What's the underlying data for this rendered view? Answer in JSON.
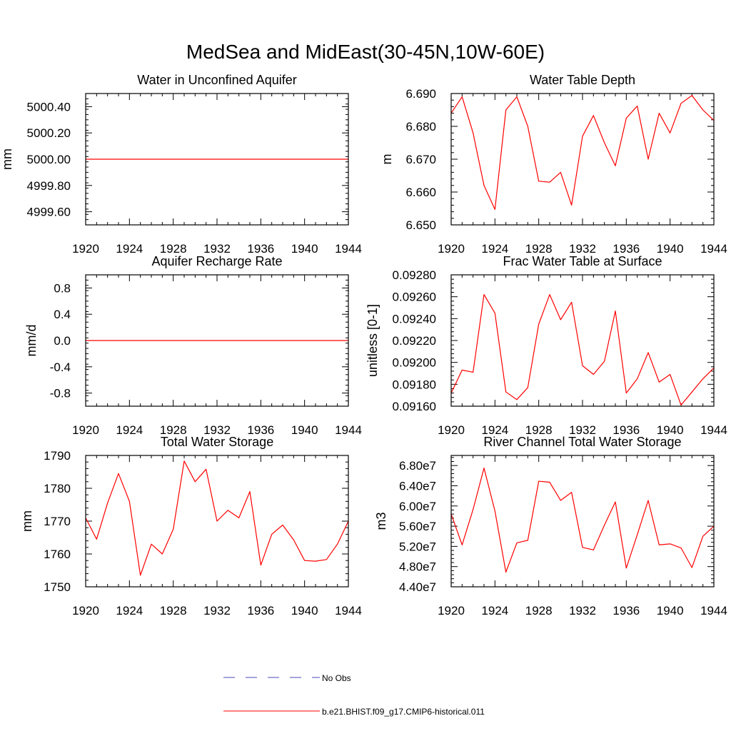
{
  "figure": {
    "title": "MedSea and MidEast(30-45N,10W-60E)"
  },
  "legend": [
    {
      "label": "No Obs",
      "color": "#4a4ab8",
      "dash": "dashed"
    },
    {
      "label": "b.e21.BHIST.f09_g17.CMIP6-historical.011",
      "color": "#ff0000",
      "dash": "solid"
    }
  ],
  "chart_data": [
    {
      "type": "line",
      "title": "Water in Unconfined Aquifer",
      "xlabel": "",
      "ylabel": "mm",
      "xlim": [
        1920,
        1944
      ],
      "ylim": [
        4999.5,
        5000.5
      ],
      "xticks": [
        1920,
        1924,
        1928,
        1932,
        1936,
        1940,
        1944
      ],
      "xtick_labels": [
        "1920",
        "1924",
        "1928",
        "1932",
        "1936",
        "1940",
        "1944"
      ],
      "yticks": [
        4999.6,
        4999.8,
        5000.0,
        5000.2,
        5000.4
      ],
      "ytick_labels": [
        "4999.60",
        "4999.80",
        "5000.00",
        "5000.20",
        "5000.40"
      ],
      "x": [
        1920,
        1921,
        1922,
        1923,
        1924,
        1925,
        1926,
        1927,
        1928,
        1929,
        1930,
        1931,
        1932,
        1933,
        1934,
        1935,
        1936,
        1937,
        1938,
        1939,
        1940,
        1941,
        1942,
        1943,
        1944
      ],
      "series": [
        {
          "color": "#ff0000",
          "values": [
            5000,
            5000,
            5000,
            5000,
            5000,
            5000,
            5000,
            5000,
            5000,
            5000,
            5000,
            5000,
            5000,
            5000,
            5000,
            5000,
            5000,
            5000,
            5000,
            5000,
            5000,
            5000,
            5000,
            5000,
            5000
          ]
        }
      ]
    },
    {
      "type": "line",
      "title": "Water Table Depth",
      "xlabel": "",
      "ylabel": "m",
      "xlim": [
        1920,
        1944
      ],
      "ylim": [
        6.65,
        6.69
      ],
      "xticks": [
        1920,
        1924,
        1928,
        1932,
        1936,
        1940,
        1944
      ],
      "xtick_labels": [
        "1920",
        "1924",
        "1928",
        "1932",
        "1936",
        "1940",
        "1944"
      ],
      "yticks": [
        6.65,
        6.66,
        6.67,
        6.68,
        6.69
      ],
      "ytick_labels": [
        "6.650",
        "6.660",
        "6.670",
        "6.680",
        "6.690"
      ],
      "x": [
        1920,
        1921,
        1922,
        1923,
        1924,
        1925,
        1926,
        1927,
        1928,
        1929,
        1930,
        1931,
        1932,
        1933,
        1934,
        1935,
        1936,
        1937,
        1938,
        1939,
        1940,
        1941,
        1942,
        1943,
        1944
      ],
      "series": [
        {
          "color": "#ff0000",
          "values": [
            6.684,
            6.689,
            6.678,
            6.662,
            6.6547,
            6.685,
            6.689,
            6.68,
            6.6633,
            6.663,
            6.666,
            6.656,
            6.677,
            6.6833,
            6.675,
            6.668,
            6.6825,
            6.6862,
            6.67,
            6.684,
            6.678,
            6.687,
            6.6894,
            6.685,
            6.6818
          ]
        }
      ]
    },
    {
      "type": "line",
      "title": "Aquifer Recharge Rate",
      "xlabel": "",
      "ylabel": "mm/d",
      "xlim": [
        1920,
        1944
      ],
      "ylim": [
        -1.0,
        1.0
      ],
      "xticks": [
        1920,
        1924,
        1928,
        1932,
        1936,
        1940,
        1944
      ],
      "xtick_labels": [
        "1920",
        "1924",
        "1928",
        "1932",
        "1936",
        "1940",
        "1944"
      ],
      "yticks": [
        -0.8,
        -0.4,
        0.0,
        0.4,
        0.8
      ],
      "ytick_labels": [
        "-0.8",
        "-0.4",
        "0.0",
        "0.4",
        "0.8"
      ],
      "x": [
        1920,
        1921,
        1922,
        1923,
        1924,
        1925,
        1926,
        1927,
        1928,
        1929,
        1930,
        1931,
        1932,
        1933,
        1934,
        1935,
        1936,
        1937,
        1938,
        1939,
        1940,
        1941,
        1942,
        1943,
        1944
      ],
      "series": [
        {
          "color": "#ff0000",
          "values": [
            0,
            0,
            0,
            0,
            0,
            0,
            0,
            0,
            0,
            0,
            0,
            0,
            0,
            0,
            0,
            0,
            0,
            0,
            0,
            0,
            0,
            0,
            0,
            0,
            0
          ]
        }
      ]
    },
    {
      "type": "line",
      "title": "Frac Water Table at Surface",
      "xlabel": "",
      "ylabel": "unitless [0-1]",
      "xlim": [
        1920,
        1944
      ],
      "ylim": [
        0.0916,
        0.0928
      ],
      "xticks": [
        1920,
        1924,
        1928,
        1932,
        1936,
        1940,
        1944
      ],
      "xtick_labels": [
        "1920",
        "1924",
        "1928",
        "1932",
        "1936",
        "1940",
        "1944"
      ],
      "yticks": [
        0.0916,
        0.0918,
        0.092,
        0.0922,
        0.0924,
        0.0926,
        0.0928
      ],
      "ytick_labels": [
        "0.09160",
        "0.09180",
        "0.09200",
        "0.09220",
        "0.09240",
        "0.09260",
        "0.09280"
      ],
      "x": [
        1920,
        1921,
        1922,
        1923,
        1924,
        1925,
        1926,
        1927,
        1928,
        1929,
        1930,
        1931,
        1932,
        1933,
        1934,
        1935,
        1936,
        1937,
        1938,
        1939,
        1940,
        1941,
        1942,
        1943,
        1944
      ],
      "series": [
        {
          "color": "#ff0000",
          "values": [
            0.09172,
            0.09193,
            0.09191,
            0.09262,
            0.09245,
            0.09173,
            0.09166,
            0.09177,
            0.09235,
            0.09262,
            0.09239,
            0.09255,
            0.09197,
            0.09189,
            0.09201,
            0.09247,
            0.09172,
            0.09185,
            0.09209,
            0.09182,
            0.09189,
            0.09161,
            0.09173,
            0.09185,
            0.09195
          ]
        }
      ]
    },
    {
      "type": "line",
      "title": "Total Water Storage",
      "xlabel": "",
      "ylabel": "mm",
      "xlim": [
        1920,
        1944
      ],
      "ylim": [
        1750,
        1790
      ],
      "xticks": [
        1920,
        1924,
        1928,
        1932,
        1936,
        1940,
        1944
      ],
      "xtick_labels": [
        "1920",
        "1924",
        "1928",
        "1932",
        "1936",
        "1940",
        "1944"
      ],
      "yticks": [
        1750,
        1760,
        1770,
        1780,
        1790
      ],
      "ytick_labels": [
        "1750",
        "1760",
        "1770",
        "1780",
        "1790"
      ],
      "x": [
        1920,
        1921,
        1922,
        1923,
        1924,
        1925,
        1926,
        1927,
        1928,
        1929,
        1930,
        1931,
        1932,
        1933,
        1934,
        1935,
        1936,
        1937,
        1938,
        1939,
        1940,
        1941,
        1942,
        1943,
        1944
      ],
      "series": [
        {
          "color": "#ff0000",
          "values": [
            1771,
            1764.5,
            1775.5,
            1784.5,
            1776,
            1753.5,
            1763,
            1760,
            1767.5,
            1788.3,
            1782,
            1785.8,
            1770,
            1773.3,
            1771,
            1779,
            1756.6,
            1766,
            1768.8,
            1764.3,
            1758,
            1757.8,
            1758.3,
            1763,
            1770
          ]
        }
      ]
    },
    {
      "type": "line",
      "title": "River Channel Total Water Storage",
      "xlabel": "",
      "ylabel": "m3",
      "xlim": [
        1920,
        1944
      ],
      "ylim": [
        44000000,
        70000000
      ],
      "xticks": [
        1920,
        1924,
        1928,
        1932,
        1936,
        1940,
        1944
      ],
      "xtick_labels": [
        "1920",
        "1924",
        "1928",
        "1932",
        "1936",
        "1940",
        "1944"
      ],
      "yticks": [
        44000000,
        48000000,
        52000000,
        56000000,
        60000000,
        64000000,
        68000000
      ],
      "ytick_labels": [
        "4.40e7",
        "4.80e7",
        "5.20e7",
        "5.60e7",
        "6.00e7",
        "6.40e7",
        "6.80e7"
      ],
      "x": [
        1920,
        1921,
        1922,
        1923,
        1924,
        1925,
        1926,
        1927,
        1928,
        1929,
        1930,
        1931,
        1932,
        1933,
        1934,
        1935,
        1936,
        1937,
        1938,
        1939,
        1940,
        1941,
        1942,
        1943,
        1944
      ],
      "series": [
        {
          "color": "#ff0000",
          "values": [
            58400000,
            52300000,
            59300000,
            67500000,
            59000000,
            46900000,
            52700000,
            53200000,
            64900000,
            64700000,
            61100000,
            62700000,
            51800000,
            51300000,
            56200000,
            60800000,
            47700000,
            54300000,
            61100000,
            52300000,
            52500000,
            51700000,
            47800000,
            54000000,
            56000000
          ]
        }
      ]
    }
  ]
}
